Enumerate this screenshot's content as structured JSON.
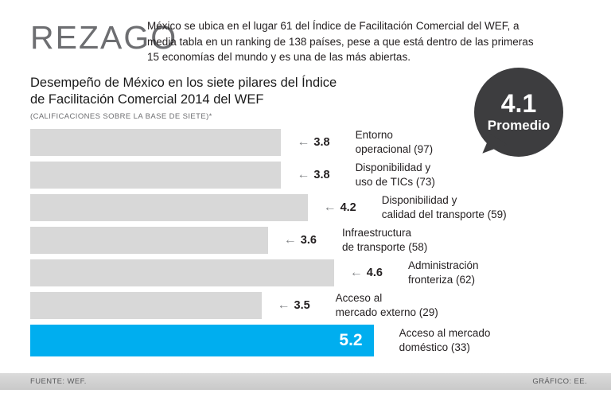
{
  "header": {
    "title": "REZAGO",
    "intro": "México se ubica en el lugar 61 del Índice de Facilitación Comercial del WEF, a media tabla en un ranking de 138 países, pese a que está dentro de las primeras 15 economías del mundo y es una de las más abiertas."
  },
  "chart": {
    "subtitle": "Desempeño de México en los siete pilares del Índice de Facilitación Comercial 2014 del WEF",
    "note": "(CALIFICACIONES SOBRE LA BASE DE SIETE)*"
  },
  "badge": {
    "value": "4.1",
    "label": "Promedio"
  },
  "chart_data": {
    "type": "bar",
    "orientation": "horizontal",
    "title": "Desempeño de México en los siete pilares del Índice de Facilitación Comercial 2014 del WEF",
    "note": "(CALIFICACIONES SOBRE LA BASE DE SIETE)*",
    "xlim": [
      0,
      7
    ],
    "average": 4.1,
    "categories": [
      "Entorno operacional (97)",
      "Disponibilidad y uso de TICs (73)",
      "Disponibilidad y calidad del transporte (59)",
      "Infraestructura de transporte (58)",
      "Administración fronteriza (62)",
      "Acceso al mercado externo (29)",
      "Acceso al mercado doméstico (33)"
    ],
    "values": [
      3.8,
      3.8,
      4.2,
      3.6,
      4.6,
      3.5,
      5.2
    ],
    "highlight_index": 6,
    "colors": {
      "bar": "#d8d8d8",
      "highlight": "#00aeef"
    },
    "bars": [
      {
        "value": 3.8,
        "label_lines": [
          "Entorno",
          "operacional (97)"
        ]
      },
      {
        "value": 3.8,
        "label_lines": [
          "Disponibilidad y",
          "uso de TICs (73)"
        ]
      },
      {
        "value": 4.2,
        "label_lines": [
          "Disponibilidad y",
          "calidad del transporte (59)"
        ]
      },
      {
        "value": 3.6,
        "label_lines": [
          "Infraestructura",
          "de transporte (58)"
        ]
      },
      {
        "value": 4.6,
        "label_lines": [
          "Administración",
          "fronteriza (62)"
        ]
      },
      {
        "value": 3.5,
        "label_lines": [
          "Acceso al",
          "mercado externo (29)"
        ]
      },
      {
        "value": 5.2,
        "label_lines": [
          "Acceso al mercado",
          "doméstico (33)"
        ]
      }
    ]
  },
  "footer": {
    "source": "FUENTE: WEF.",
    "credit": "GRÁFICO: EE."
  }
}
